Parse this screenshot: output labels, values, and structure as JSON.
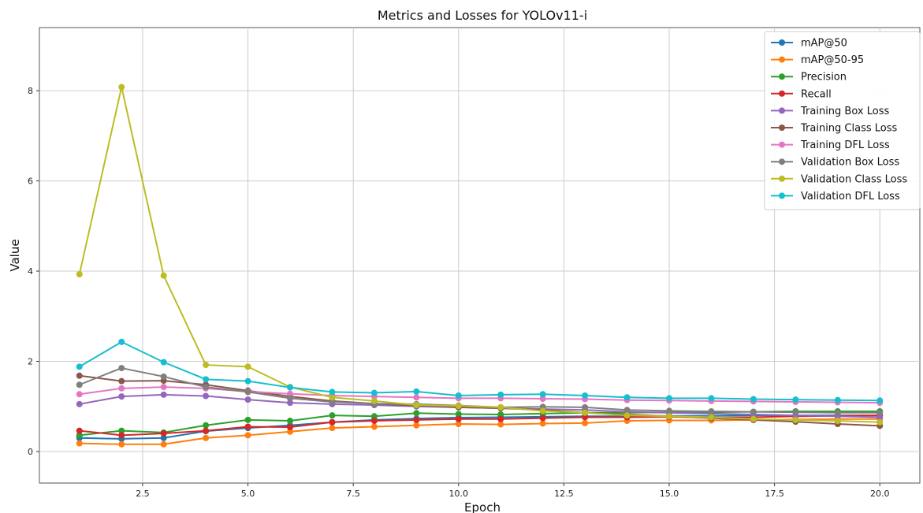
{
  "chart_data": {
    "type": "line",
    "title": "Metrics and Losses for YOLOv11-i",
    "xlabel": "Epoch",
    "ylabel": "Value",
    "xlim": [
      0.05,
      20.95
    ],
    "ylim": [
      -0.7,
      9.4
    ],
    "xticks": [
      2.5,
      5.0,
      7.5,
      10.0,
      12.5,
      15.0,
      17.5,
      20.0
    ],
    "xtick_labels": [
      "2.5",
      "5.0",
      "7.5",
      "10.0",
      "12.5",
      "15.0",
      "17.5",
      "20.0"
    ],
    "yticks": [
      0,
      2,
      4,
      6,
      8
    ],
    "ytick_labels": [
      "0",
      "2",
      "4",
      "6",
      "8"
    ],
    "grid": true,
    "legend_position": "top-right",
    "x": [
      1,
      2,
      3,
      4,
      5,
      6,
      7,
      8,
      9,
      10,
      11,
      12,
      13,
      14,
      15,
      16,
      17,
      18,
      19,
      20
    ],
    "series": [
      {
        "name": "mAP@50",
        "color": "#1f77b4",
        "values": [
          0.3,
          0.28,
          0.3,
          0.45,
          0.52,
          0.58,
          0.65,
          0.7,
          0.73,
          0.75,
          0.76,
          0.77,
          0.78,
          0.78,
          0.79,
          0.79,
          0.8,
          0.8,
          0.8,
          0.8
        ]
      },
      {
        "name": "mAP@50-95",
        "color": "#ff7f0e",
        "values": [
          0.18,
          0.16,
          0.16,
          0.3,
          0.36,
          0.44,
          0.52,
          0.55,
          0.58,
          0.61,
          0.6,
          0.62,
          0.63,
          0.68,
          0.69,
          0.69,
          0.7,
          0.71,
          0.72,
          0.72
        ]
      },
      {
        "name": "Precision",
        "color": "#2ca02c",
        "values": [
          0.36,
          0.46,
          0.42,
          0.58,
          0.7,
          0.68,
          0.8,
          0.78,
          0.85,
          0.83,
          0.82,
          0.84,
          0.86,
          0.86,
          0.87,
          0.87,
          0.88,
          0.89,
          0.89,
          0.89
        ]
      },
      {
        "name": "Recall",
        "color": "#d62728",
        "values": [
          0.46,
          0.36,
          0.4,
          0.46,
          0.55,
          0.54,
          0.65,
          0.68,
          0.7,
          0.72,
          0.72,
          0.74,
          0.76,
          0.76,
          0.77,
          0.75,
          0.76,
          0.78,
          0.79,
          0.8
        ]
      },
      {
        "name": "Training Box Loss",
        "color": "#9467bd",
        "values": [
          1.05,
          1.22,
          1.26,
          1.23,
          1.15,
          1.08,
          1.05,
          1.03,
          1.0,
          0.98,
          0.96,
          0.94,
          0.92,
          0.88,
          0.86,
          0.84,
          0.82,
          0.8,
          0.78,
          0.76
        ]
      },
      {
        "name": "Training Class Loss",
        "color": "#8c564b",
        "values": [
          1.68,
          1.56,
          1.57,
          1.48,
          1.35,
          1.22,
          1.12,
          1.06,
          1.02,
          0.98,
          0.96,
          0.92,
          0.86,
          0.82,
          0.78,
          0.74,
          0.7,
          0.66,
          0.61,
          0.57
        ]
      },
      {
        "name": "Training DFL Loss",
        "color": "#e377c2",
        "values": [
          1.27,
          1.4,
          1.43,
          1.4,
          1.33,
          1.28,
          1.24,
          1.22,
          1.2,
          1.18,
          1.18,
          1.17,
          1.16,
          1.14,
          1.13,
          1.12,
          1.11,
          1.1,
          1.09,
          1.08
        ]
      },
      {
        "name": "Validation Box Loss",
        "color": "#7f7f7f",
        "values": [
          1.48,
          1.85,
          1.66,
          1.43,
          1.32,
          1.18,
          1.1,
          1.06,
          1.05,
          1.02,
          0.98,
          0.99,
          0.98,
          0.92,
          0.9,
          0.89,
          0.88,
          0.87,
          0.86,
          0.86
        ]
      },
      {
        "name": "Validation Class Loss",
        "color": "#bcbd22",
        "values": [
          3.93,
          8.08,
          3.9,
          1.92,
          1.88,
          1.43,
          1.2,
          1.12,
          1.03,
          1.01,
          0.98,
          0.9,
          0.86,
          0.8,
          0.78,
          0.76,
          0.72,
          0.7,
          0.68,
          0.65
        ]
      },
      {
        "name": "Validation DFL Loss",
        "color": "#17becf",
        "values": [
          1.88,
          2.43,
          1.98,
          1.6,
          1.56,
          1.42,
          1.32,
          1.3,
          1.33,
          1.24,
          1.26,
          1.27,
          1.24,
          1.2,
          1.18,
          1.18,
          1.16,
          1.15,
          1.14,
          1.13
        ]
      }
    ]
  }
}
